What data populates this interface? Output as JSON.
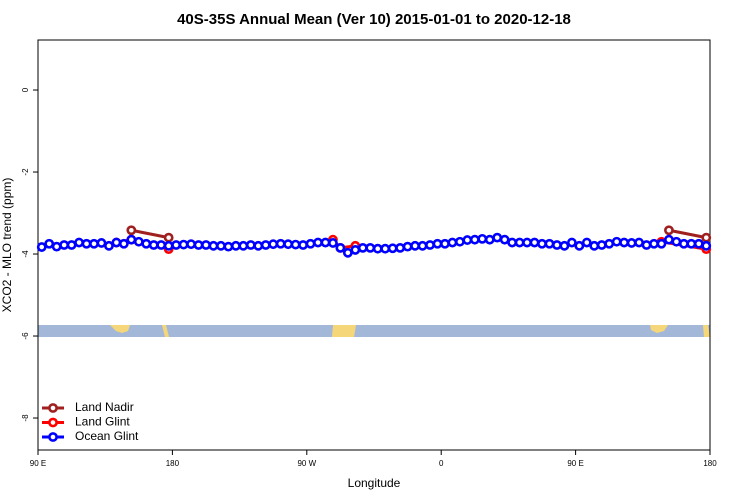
{
  "chart_data": {
    "type": "line",
    "title": "40S-35S Annual Mean (Ver 10)   2015-01-01 to 2020-12-18",
    "x_label": "Longitude",
    "y_label": "XCO2 - MLO trend (ppm)",
    "xlim": [
      90,
      540
    ],
    "ylim": [
      -8.78,
      1.22
    ],
    "xticks": [
      {
        "value": 90,
        "label": "90 E"
      },
      180,
      {
        "value": 270,
        "label": "90 W"
      },
      {
        "value": 360,
        "label": "0"
      },
      {
        "value": 450,
        "label": "90 E"
      },
      {
        "value": 540,
        "label": "180"
      }
    ],
    "yticks": [
      0,
      -2,
      -4,
      -6,
      -8
    ],
    "legend": "bottom-left",
    "series": [
      {
        "name": "Land Nadir",
        "color": "#a02020",
        "x": [
          152.5,
          177.5,
          512.5,
          537.5
        ],
        "values": [
          -3.42,
          -3.6,
          -3.42,
          -3.6
        ]
      },
      {
        "name": "Land Glint",
        "color": "#ff0000",
        "x": [
          142.5,
          152.5,
          177.5,
          287.5,
          292.5,
          302.5,
          507.5,
          537.5
        ],
        "values": [
          -3.72,
          -3.65,
          -3.88,
          -3.65,
          -3.85,
          -3.8,
          -3.7,
          -3.88
        ]
      },
      {
        "name": "Ocean Glint",
        "color": "#0000ff",
        "x": [
          92.5,
          97.5,
          102.5,
          107.5,
          112.5,
          117.5,
          122.5,
          127.5,
          132.5,
          137.5,
          142.5,
          147.5,
          152.5,
          157.5,
          162.5,
          167.5,
          172.5,
          177.5,
          182.5,
          187.5,
          192.5,
          197.5,
          202.5,
          207.5,
          212.5,
          217.5,
          222.5,
          227.5,
          232.5,
          237.5,
          242.5,
          247.5,
          252.5,
          257.5,
          262.5,
          267.5,
          272.5,
          277.5,
          282.5,
          287.5,
          292.5,
          297.5,
          302.5,
          307.5,
          312.5,
          317.5,
          322.5,
          327.5,
          332.5,
          337.5,
          342.5,
          347.5,
          352.5,
          357.5,
          362.5,
          367.5,
          372.5,
          377.5,
          382.5,
          387.5,
          392.5,
          397.5,
          402.5,
          407.5,
          412.5,
          417.5,
          422.5,
          427.5,
          432.5,
          437.5,
          442.5,
          447.5,
          452.5,
          457.5,
          462.5,
          467.5,
          472.5,
          477.5,
          482.5,
          487.5,
          492.5,
          497.5,
          502.5,
          507.5,
          512.5,
          517.5,
          522.5,
          527.5,
          532.5,
          537.5
        ],
        "values": [
          -3.83,
          -3.75,
          -3.82,
          -3.78,
          -3.78,
          -3.72,
          -3.75,
          -3.75,
          -3.73,
          -3.8,
          -3.72,
          -3.75,
          -3.65,
          -3.7,
          -3.75,
          -3.78,
          -3.78,
          -3.8,
          -3.78,
          -3.77,
          -3.76,
          -3.78,
          -3.78,
          -3.8,
          -3.8,
          -3.82,
          -3.8,
          -3.8,
          -3.78,
          -3.8,
          -3.78,
          -3.76,
          -3.75,
          -3.76,
          -3.77,
          -3.78,
          -3.75,
          -3.72,
          -3.72,
          -3.73,
          -3.85,
          -3.97,
          -3.9,
          -3.85,
          -3.85,
          -3.87,
          -3.87,
          -3.86,
          -3.85,
          -3.82,
          -3.8,
          -3.8,
          -3.78,
          -3.75,
          -3.75,
          -3.72,
          -3.7,
          -3.66,
          -3.65,
          -3.63,
          -3.65,
          -3.6,
          -3.65,
          -3.72,
          -3.72,
          -3.72,
          -3.72,
          -3.75,
          -3.75,
          -3.78,
          -3.8,
          -3.72,
          -3.8,
          -3.72,
          -3.8,
          -3.78,
          -3.75,
          -3.7,
          -3.72,
          -3.73,
          -3.72,
          -3.78,
          -3.75,
          -3.75,
          -3.65,
          -3.7,
          -3.75,
          -3.75,
          -3.75,
          -3.8
        ]
      }
    ]
  }
}
